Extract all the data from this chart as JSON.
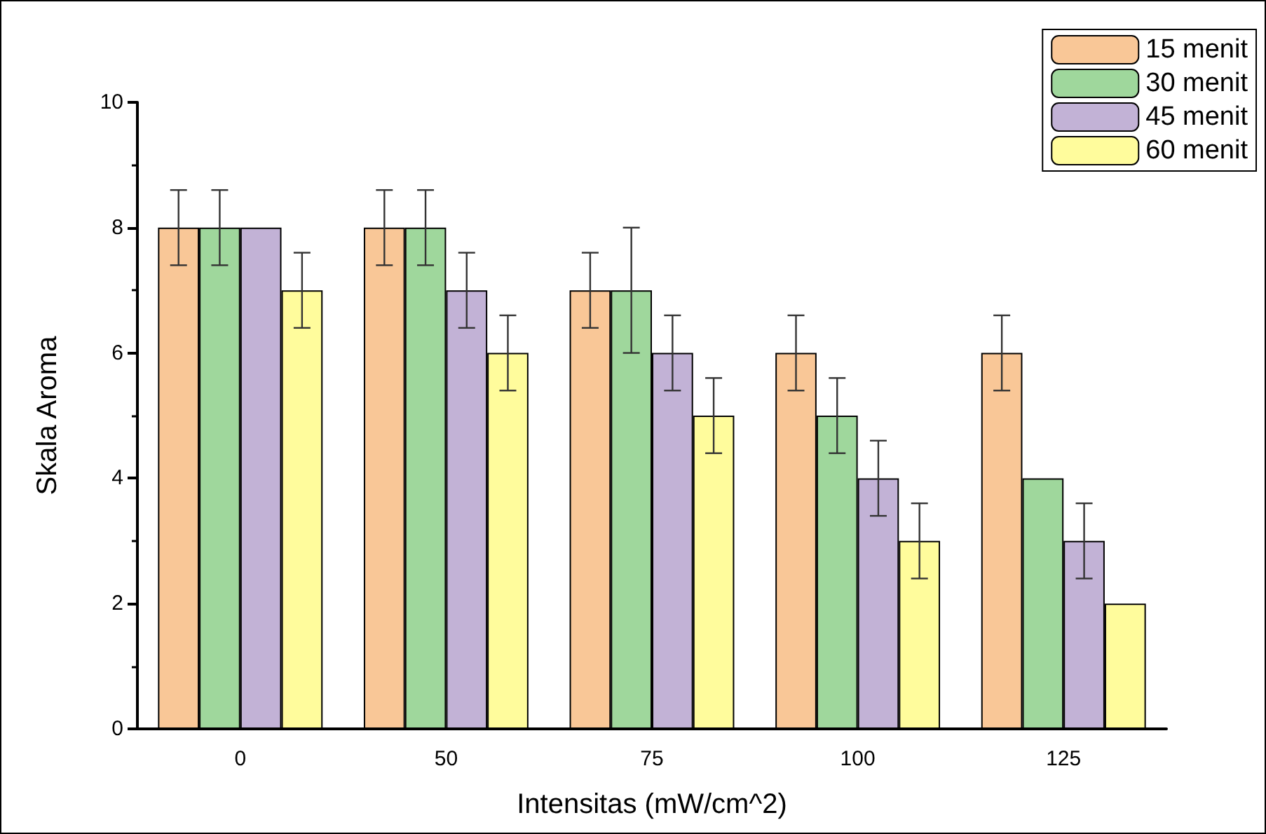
{
  "chart_data": {
    "type": "bar",
    "xlabel": "Intensitas (mW/cm^2)",
    "ylabel": "Skala Aroma",
    "categories": [
      "0",
      "50",
      "75",
      "100",
      "125"
    ],
    "series": [
      {
        "name": "15 menit",
        "color": "#f9c797",
        "values": [
          8,
          8,
          7,
          6,
          6
        ],
        "errors": [
          0.6,
          0.6,
          0.6,
          0.6,
          0.6
        ]
      },
      {
        "name": "30 menit",
        "color": "#9fd79c",
        "values": [
          8,
          8,
          7,
          5,
          4
        ],
        "errors": [
          0.6,
          0.6,
          1,
          0.6,
          null
        ]
      },
      {
        "name": "45 menit",
        "color": "#c2b2d6",
        "values": [
          8,
          7,
          6,
          4,
          3
        ],
        "errors": [
          null,
          0.6,
          0.6,
          0.6,
          0.6
        ]
      },
      {
        "name": "60 menit",
        "color": "#fffc9c",
        "values": [
          7,
          6,
          5,
          3,
          2
        ],
        "errors": [
          0.6,
          0.6,
          0.6,
          0.6,
          null
        ]
      }
    ],
    "ylim": [
      0,
      10
    ],
    "yticks": [
      0,
      2,
      4,
      6,
      8,
      10
    ],
    "grid": false,
    "legend": "top right"
  }
}
